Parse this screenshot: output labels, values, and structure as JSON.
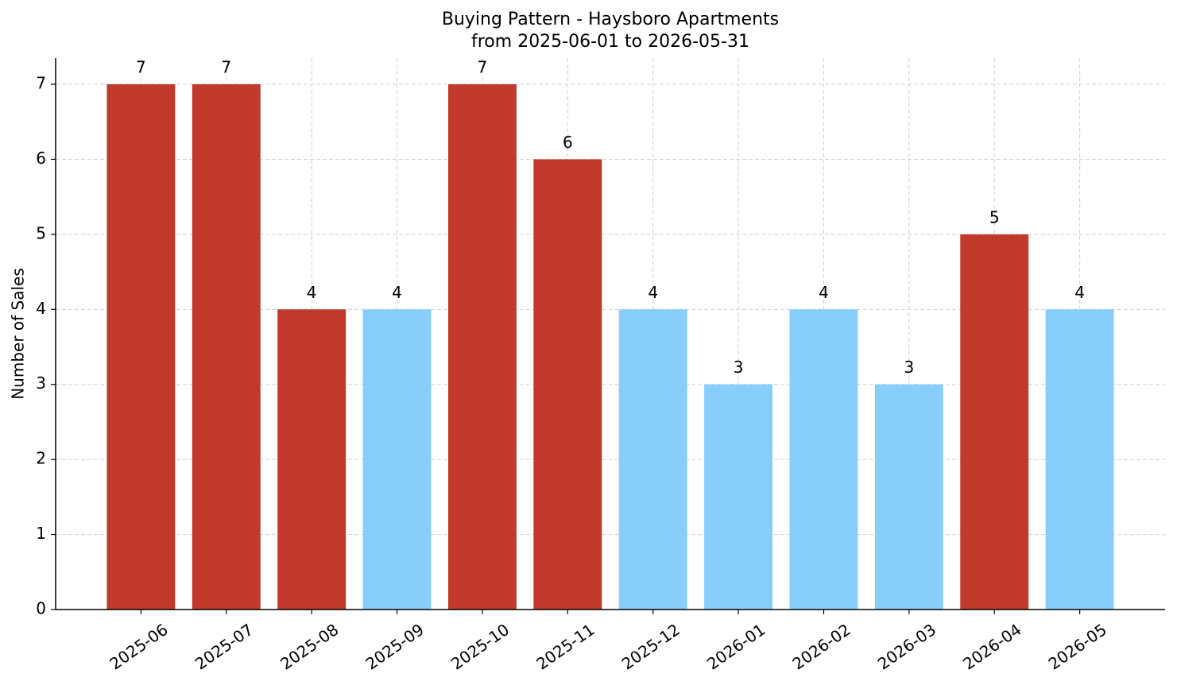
{
  "chart_data": {
    "type": "bar",
    "title": "Buying Pattern - Haysboro Apartments",
    "subtitle": "from 2025-06-01 to 2026-05-31",
    "y_label": "Number of Sales",
    "categories": [
      "2025-06",
      "2025-07",
      "2025-08",
      "2025-09",
      "2025-10",
      "2025-11",
      "2025-12",
      "2026-01",
      "2026-02",
      "2026-03",
      "2026-04",
      "2026-05"
    ],
    "values": [
      7,
      7,
      4,
      4,
      7,
      6,
      4,
      3,
      4,
      3,
      5,
      4
    ],
    "colors": [
      "#c0392b",
      "#c0392b",
      "#c0392b",
      "#87cefa",
      "#c0392b",
      "#c0392b",
      "#87cefa",
      "#87cefa",
      "#87cefa",
      "#87cefa",
      "#c0392b",
      "#87cefa"
    ],
    "ylim": [
      0,
      7.35
    ],
    "yticks": [
      0,
      1,
      2,
      3,
      4,
      5,
      6,
      7
    ],
    "grid": true
  }
}
